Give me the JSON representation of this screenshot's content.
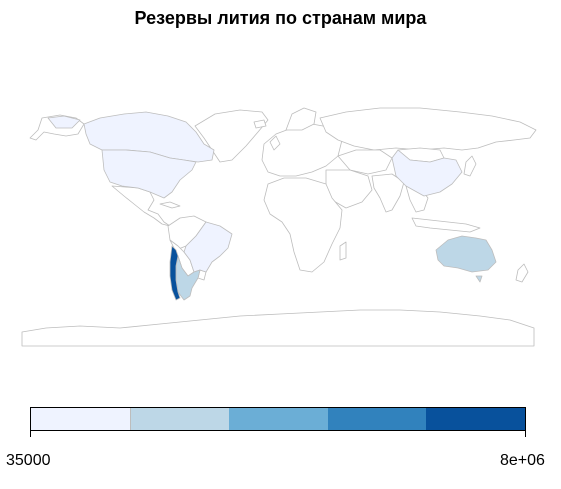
{
  "map": {
    "title": "Резервы лития по странам мира",
    "colors": {
      "no_data": "#ffffff",
      "border": "#bdbdbd",
      "lowest": "#eff3ff",
      "low": "#bdd7e7",
      "mid": "#6baed6",
      "high": "#3182bd",
      "highest": "#08519c"
    },
    "highlighted_countries": [
      {
        "country": "United States",
        "class": "lowest"
      },
      {
        "country": "Canada",
        "class": "lowest"
      },
      {
        "country": "Brazil",
        "class": "lowest"
      },
      {
        "country": "China",
        "class": "lowest"
      },
      {
        "country": "Argentina",
        "class": "low"
      },
      {
        "country": "Australia",
        "class": "low"
      },
      {
        "country": "Chile",
        "class": "highest"
      }
    ]
  },
  "legend": {
    "min_label": "35000",
    "max_label": "8e+06",
    "classes": [
      {
        "color": "#eff3ff"
      },
      {
        "color": "#bdd7e7"
      },
      {
        "color": "#6baed6"
      },
      {
        "color": "#3182bd"
      },
      {
        "color": "#08519c"
      }
    ]
  }
}
